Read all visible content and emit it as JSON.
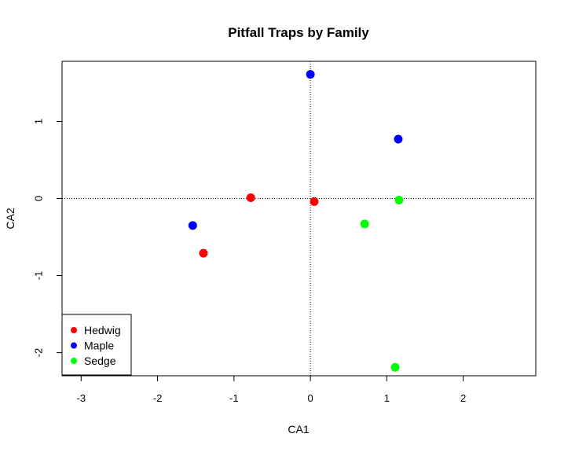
{
  "chart_data": {
    "type": "scatter",
    "title": "Pitfall Traps by Family",
    "xlabel": "CA1",
    "ylabel": "CA2",
    "xlim": [
      -3.25,
      2.95
    ],
    "ylim": [
      -2.3,
      1.78
    ],
    "xticks": [
      -3,
      -2,
      -1,
      0,
      1,
      2
    ],
    "xtick_labels": [
      "-3",
      "-2",
      "-1",
      "0",
      "1",
      "2"
    ],
    "yticks": [
      -2,
      -1,
      0,
      1
    ],
    "ytick_labels": [
      "-2",
      "-1",
      "0",
      "1"
    ],
    "reference_lines": {
      "x": 0,
      "y": 0,
      "style": "dotted"
    },
    "grid": false,
    "legend_position": "bottom-left",
    "series": [
      {
        "name": "Hedwig",
        "color": "#ff0000",
        "points": [
          {
            "x": -0.78,
            "y": 0.01
          },
          {
            "x": 0.05,
            "y": -0.04
          },
          {
            "x": -1.4,
            "y": -0.71
          }
        ]
      },
      {
        "name": "Maple",
        "color": "#0000ff",
        "points": [
          {
            "x": 0.0,
            "y": 1.61
          },
          {
            "x": 1.15,
            "y": 0.77
          },
          {
            "x": -1.54,
            "y": -0.35
          }
        ]
      },
      {
        "name": "Sedge",
        "color": "#00ff00",
        "points": [
          {
            "x": 1.16,
            "y": -0.02
          },
          {
            "x": 0.71,
            "y": -0.33
          },
          {
            "x": 1.11,
            "y": -2.19
          }
        ]
      }
    ]
  }
}
